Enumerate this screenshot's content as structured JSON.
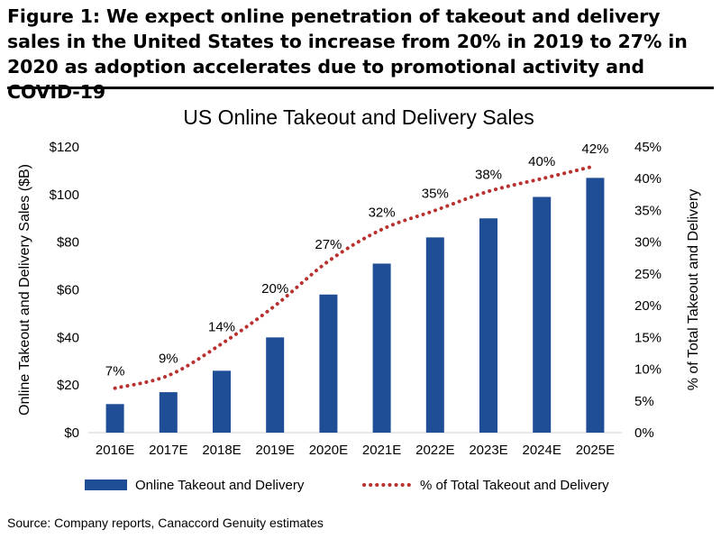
{
  "figure": {
    "title": "Figure 1: We expect online penetration of takeout and delivery sales in the United States to increase from 20% in 2019 to 27% in 2020 as adoption accelerates due to promotional activity and COVID-19",
    "source": "Source: Company reports, Canaccord Genuity estimates"
  },
  "chart_data": {
    "type": "bar",
    "title": "US Online Takeout and Delivery Sales",
    "categories": [
      "2016E",
      "2017E",
      "2018E",
      "2019E",
      "2020E",
      "2021E",
      "2022E",
      "2023E",
      "2024E",
      "2025E"
    ],
    "series": [
      {
        "name": "Online Takeout and Delivery",
        "type": "bar",
        "axis": "left",
        "color": "#1f4e97",
        "values": [
          12,
          17,
          26,
          40,
          58,
          71,
          82,
          90,
          99,
          107
        ]
      },
      {
        "name": "% of Total Takeout and Delivery",
        "type": "line",
        "style": "dotted",
        "axis": "right",
        "color": "#b8312f",
        "values": [
          7,
          9,
          14,
          20,
          27,
          32,
          35,
          38,
          40,
          42
        ],
        "labels": [
          "7%",
          "9%",
          "14%",
          "20%",
          "27%",
          "32%",
          "35%",
          "38%",
          "40%",
          "42%"
        ]
      }
    ],
    "ylabel": "Online Takeout and Delivery Sales ($B)",
    "ylim": [
      0,
      120
    ],
    "yticks": [
      "$0",
      "$20",
      "$40",
      "$60",
      "$80",
      "$100",
      "$120"
    ],
    "y2label": "% of Total Takeout and Delivery",
    "y2lim": [
      0,
      45
    ],
    "y2ticks": [
      "0%",
      "5%",
      "10%",
      "15%",
      "20%",
      "25%",
      "30%",
      "35%",
      "40%",
      "45%"
    ],
    "grid": false,
    "legend": "bottom"
  }
}
